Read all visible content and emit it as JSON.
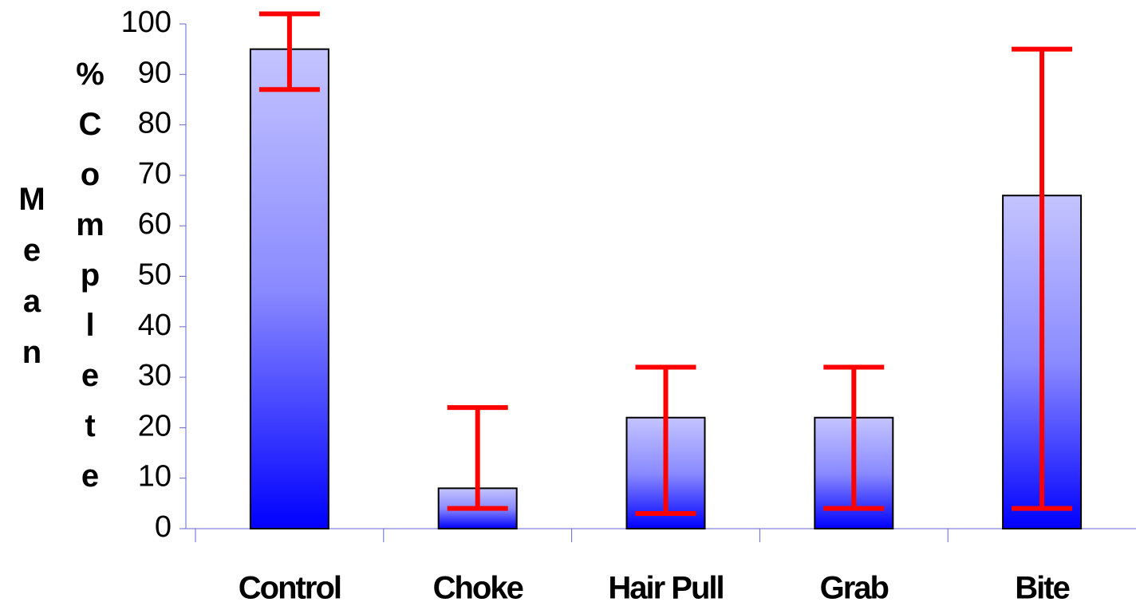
{
  "chart_data": {
    "type": "bar",
    "ylabel_lines": [
      "Mean",
      "%Complete"
    ],
    "categories": [
      "Control",
      "Choke",
      "Hair Pull",
      "Grab",
      "Bite"
    ],
    "series": [
      {
        "name": null,
        "color": "#0000ff",
        "values": [
          95,
          8,
          22,
          22,
          66
        ],
        "error_plus": [
          7,
          16,
          10,
          10,
          29
        ],
        "error_minus": [
          8,
          4,
          19,
          18,
          62
        ],
        "error_color": "#ff0000"
      }
    ],
    "ylim": [
      0,
      100
    ],
    "yticks": [
      0,
      10,
      20,
      30,
      40,
      50,
      60,
      70,
      80,
      90,
      100
    ],
    "grid": false
  }
}
